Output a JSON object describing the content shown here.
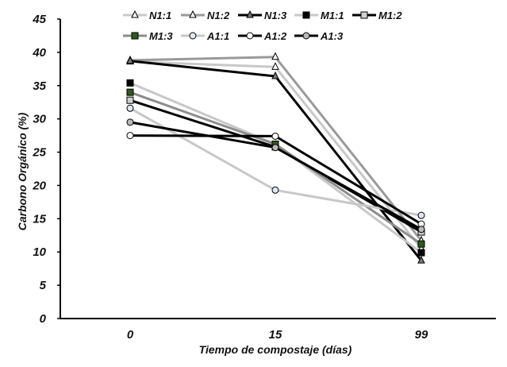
{
  "chart_data": {
    "type": "line",
    "xlabel": "Tiempo  de compostaje (días)",
    "ylabel": "Carbono Orgánico (%)",
    "categories": [
      "0",
      "15",
      "99"
    ],
    "ylim": [
      0,
      45
    ],
    "yticks": [
      "0",
      "5",
      "10",
      "15",
      "20",
      "25",
      "30",
      "35",
      "40",
      "45"
    ],
    "grid": false,
    "legend_position": "top",
    "series": [
      {
        "name": "N1:1",
        "values": [
          38.6,
          37.8,
          10.5
        ],
        "color": "#c8c8c8",
        "marker": "triangle",
        "marker_fill": "#ffffff"
      },
      {
        "name": "N1:2",
        "values": [
          38.8,
          39.3,
          11.7
        ],
        "color": "#9a9a9a",
        "marker": "triangle",
        "marker_fill": "#ffffff"
      },
      {
        "name": "N1:3",
        "values": [
          38.7,
          36.4,
          8.7
        ],
        "color": "#000000",
        "marker": "triangle",
        "marker_fill": "#777777"
      },
      {
        "name": "M1:1",
        "values": [
          35.4,
          26.2,
          9.9
        ],
        "color": "#c8c8c8",
        "marker": "square",
        "marker_fill": "#000000"
      },
      {
        "name": "M1:2",
        "values": [
          32.8,
          25.8,
          13.0
        ],
        "color": "#000000",
        "marker": "square",
        "marker_fill": "#d0d0d0"
      },
      {
        "name": "M1:3",
        "values": [
          34.0,
          26.2,
          11.2
        ],
        "color": "#8c8c8c",
        "marker": "square",
        "marker_fill": "#2e5a1c"
      },
      {
        "name": "A1:1",
        "values": [
          31.6,
          19.3,
          15.5
        ],
        "color": "#c8c8c8",
        "marker": "circle",
        "marker_fill": "#dfe8f3"
      },
      {
        "name": "A1:2",
        "values": [
          27.5,
          27.4,
          14.2
        ],
        "color": "#000000",
        "marker": "circle",
        "marker_fill": "#ffffff"
      },
      {
        "name": "A1:3",
        "values": [
          29.5,
          25.7,
          13.4
        ],
        "color": "#000000",
        "marker": "circle",
        "marker_fill": "#b8b8b8"
      }
    ]
  }
}
